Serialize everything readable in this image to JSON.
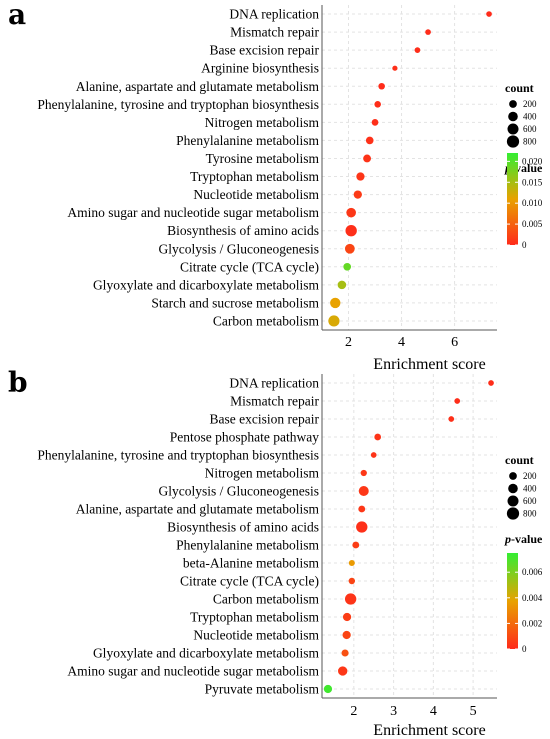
{
  "colors": {
    "low": "#ff2a1a",
    "mid": "#e8a200",
    "high": "#33ee33",
    "grid": "#e3e3e3"
  },
  "chart_data": [
    {
      "type": "scatter",
      "panel": "a",
      "xlabel": "Enrichment score",
      "xlim": [
        1.0,
        7.6
      ],
      "xticks": [
        2,
        4,
        6
      ],
      "size_legend": {
        "title": "count",
        "values": [
          200,
          400,
          600,
          800
        ]
      },
      "color_legend": {
        "title_italic": "p",
        "title_rest": "-value",
        "ticks": [
          "0.020",
          "0.015",
          "0.010",
          "0.005",
          "0"
        ],
        "pmax": 0.022
      },
      "terms": [
        "DNA replication",
        "Mismatch repair",
        "Base excision repair",
        "Arginine biosynthesis",
        "Alanine, aspartate and glutamate metabolism",
        "Phenylalanine, tyrosine and tryptophan biosynthesis",
        "Nitrogen metabolism",
        "Phenylalanine metabolism",
        "Tyrosine metabolism",
        "Tryptophan metabolism",
        "Nucleotide metabolism",
        "Amino sugar and nucleotide sugar metabolism",
        "Biosynthesis of amino acids",
        "Glycolysis / Gluconeogenesis",
        "Citrate cycle (TCA cycle)",
        "Glyoxylate and dicarboxylate metabolism",
        "Starch and sucrose metabolism",
        "Carbon metabolism"
      ],
      "x": [
        7.3,
        5.0,
        4.6,
        3.75,
        3.25,
        3.1,
        3.0,
        2.8,
        2.7,
        2.45,
        2.35,
        2.1,
        2.1,
        2.05,
        1.95,
        1.75,
        1.5,
        1.45
      ],
      "count": [
        60,
        60,
        60,
        40,
        110,
        110,
        120,
        190,
        210,
        250,
        250,
        400,
        650,
        420,
        200,
        280,
        500,
        620
      ],
      "pvalue": [
        0.0001,
        0.0002,
        0.0003,
        0.0005,
        0.0002,
        0.0003,
        0.0005,
        0.0006,
        0.0008,
        0.001,
        0.0015,
        0.0012,
        0.0005,
        0.0025,
        0.019,
        0.015,
        0.011,
        0.012
      ]
    },
    {
      "type": "scatter",
      "panel": "b",
      "xlabel": "Enrichment score",
      "xlim": [
        1.2,
        5.6
      ],
      "xticks": [
        2,
        3,
        4,
        5
      ],
      "size_legend": {
        "title": "count",
        "values": [
          200,
          400,
          600,
          800
        ]
      },
      "color_legend": {
        "title_italic": "p",
        "title_rest": "-value",
        "ticks": [
          "0.006",
          "0.004",
          "0.002",
          "0"
        ],
        "pmax": 0.0075
      },
      "terms": [
        "DNA replication",
        "Mismatch repair",
        "Base excision repair",
        "Pentose phosphate pathway",
        "Phenylalanine, tyrosine and tryptophan biosynthesis",
        "Nitrogen metabolism",
        "Glycolysis / Gluconeogenesis",
        "Alanine, aspartate and glutamate metabolism",
        "Biosynthesis of amino acids",
        "Phenylalanine metabolism",
        "beta-Alanine metabolism",
        "Citrate cycle (TCA cycle)",
        "Carbon metabolism",
        "Tryptophan metabolism",
        "Nucleotide metabolism",
        "Glyoxylate and dicarboxylate metabolism",
        "Amino sugar and nucleotide sugar metabolism",
        "Pyruvate metabolism"
      ],
      "x": [
        5.45,
        4.6,
        4.45,
        2.6,
        2.5,
        2.25,
        2.25,
        2.2,
        2.2,
        2.05,
        1.95,
        1.95,
        1.92,
        1.83,
        1.82,
        1.78,
        1.72,
        1.35
      ],
      "count": [
        60,
        60,
        60,
        120,
        60,
        90,
        450,
        130,
        650,
        130,
        80,
        100,
        650,
        250,
        250,
        150,
        370,
        250
      ],
      "pvalue": [
        0.0001,
        0.0001,
        0.0002,
        0.0003,
        0.0003,
        0.0004,
        0.0004,
        0.0004,
        0.0002,
        0.0006,
        0.0035,
        0.0008,
        0.0003,
        0.0006,
        0.0008,
        0.0012,
        0.0004,
        0.0072
      ]
    }
  ]
}
